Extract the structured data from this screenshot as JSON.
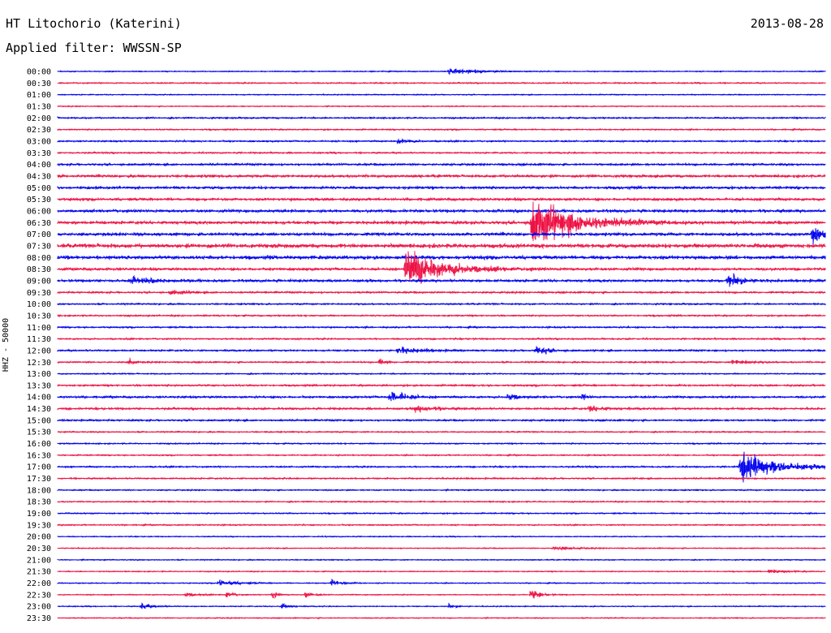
{
  "header": {
    "station": "HT Litochorio (Katerini)",
    "date": "2013-08-28",
    "filter": "Applied filter: WWSSN-SP",
    "channel": "HHZ - 50000"
  },
  "colors": {
    "trace_a": "#0000ee",
    "trace_b": "#ee1144"
  },
  "chart_data": {
    "type": "line",
    "title": "HT Litochorio (Katerini)",
    "subtitle": "Applied filter: WWSSN-SP",
    "ylabel": "HHZ - 50000",
    "xlabel": "",
    "rows": [
      "00:00",
      "00:30",
      "01:00",
      "01:30",
      "02:00",
      "02:30",
      "03:00",
      "03:30",
      "04:00",
      "04:30",
      "05:00",
      "05:30",
      "06:00",
      "06:30",
      "07:00",
      "07:30",
      "08:00",
      "08:30",
      "09:00",
      "09:30",
      "10:00",
      "10:30",
      "11:00",
      "11:30",
      "12:00",
      "12:30",
      "13:00",
      "13:30",
      "14:00",
      "14:30",
      "15:00",
      "15:30",
      "16:00",
      "16:30",
      "17:00",
      "17:30",
      "18:00",
      "18:30",
      "19:00",
      "19:30",
      "20:00",
      "20:30",
      "21:00",
      "21:30",
      "22:00",
      "22:30",
      "23:00",
      "23:30"
    ],
    "row_duration_min": 30,
    "noise_levels": [
      0.2,
      0.25,
      0.2,
      0.2,
      0.3,
      0.25,
      0.3,
      0.3,
      0.4,
      0.5,
      0.5,
      0.5,
      0.55,
      0.6,
      0.6,
      0.8,
      0.7,
      0.5,
      0.5,
      0.35,
      0.3,
      0.3,
      0.3,
      0.3,
      0.35,
      0.3,
      0.25,
      0.35,
      0.4,
      0.4,
      0.35,
      0.25,
      0.25,
      0.25,
      0.3,
      0.3,
      0.25,
      0.25,
      0.25,
      0.25,
      0.2,
      0.2,
      0.2,
      0.2,
      0.2,
      0.2,
      0.2,
      0.2
    ],
    "events": [
      {
        "row": "00:00",
        "minute": 15.3,
        "amplitude": 1.5,
        "duration": 1.5
      },
      {
        "row": "03:00",
        "minute": 13.3,
        "amplitude": 1.2,
        "duration": 0.7
      },
      {
        "row": "06:30",
        "minute": 18.5,
        "amplitude": 12.0,
        "duration": 2.5
      },
      {
        "row": "07:00",
        "minute": 29.5,
        "amplitude": 4.0,
        "duration": 0.6
      },
      {
        "row": "08:30",
        "minute": 13.6,
        "amplitude": 9.0,
        "duration": 2.2
      },
      {
        "row": "09:00",
        "minute": 2.9,
        "amplitude": 1.2,
        "duration": 1.5
      },
      {
        "row": "09:00",
        "minute": 26.2,
        "amplitude": 3.5,
        "duration": 0.8
      },
      {
        "row": "09:30",
        "minute": 4.4,
        "amplitude": 1.0,
        "duration": 1.0
      },
      {
        "row": "12:00",
        "minute": 13.3,
        "amplitude": 1.5,
        "duration": 1.2
      },
      {
        "row": "12:00",
        "minute": 18.7,
        "amplitude": 2.5,
        "duration": 0.6
      },
      {
        "row": "12:30",
        "minute": 2.8,
        "amplitude": 2.0,
        "duration": 0.3
      },
      {
        "row": "12:30",
        "minute": 12.6,
        "amplitude": 2.0,
        "duration": 0.3
      },
      {
        "row": "12:30",
        "minute": 26.4,
        "amplitude": 1.2,
        "duration": 0.8
      },
      {
        "row": "14:00",
        "minute": 13.0,
        "amplitude": 3.0,
        "duration": 0.8
      },
      {
        "row": "14:00",
        "minute": 17.6,
        "amplitude": 2.0,
        "duration": 0.5
      },
      {
        "row": "14:00",
        "minute": 20.5,
        "amplitude": 1.2,
        "duration": 0.3
      },
      {
        "row": "14:30",
        "minute": 14.0,
        "amplitude": 1.5,
        "duration": 1.0
      },
      {
        "row": "14:30",
        "minute": 20.8,
        "amplitude": 1.2,
        "duration": 0.8
      },
      {
        "row": "17:00",
        "minute": 26.7,
        "amplitude": 7.0,
        "duration": 2.0
      },
      {
        "row": "20:30",
        "minute": 19.4,
        "amplitude": 1.0,
        "duration": 1.0
      },
      {
        "row": "21:30",
        "minute": 27.8,
        "amplitude": 1.0,
        "duration": 0.8
      },
      {
        "row": "22:00",
        "minute": 6.3,
        "amplitude": 1.5,
        "duration": 1.0
      },
      {
        "row": "22:00",
        "minute": 10.7,
        "amplitude": 1.5,
        "duration": 0.6
      },
      {
        "row": "22:30",
        "minute": 5.0,
        "amplitude": 1.0,
        "duration": 0.6
      },
      {
        "row": "22:30",
        "minute": 6.6,
        "amplitude": 1.5,
        "duration": 0.4
      },
      {
        "row": "22:30",
        "minute": 8.4,
        "amplitude": 2.0,
        "duration": 0.3
      },
      {
        "row": "22:30",
        "minute": 9.7,
        "amplitude": 1.5,
        "duration": 0.4
      },
      {
        "row": "22:30",
        "minute": 18.5,
        "amplitude": 2.5,
        "duration": 0.5
      },
      {
        "row": "23:00",
        "minute": 3.3,
        "amplitude": 1.5,
        "duration": 0.6
      },
      {
        "row": "23:00",
        "minute": 8.8,
        "amplitude": 1.2,
        "duration": 0.4
      },
      {
        "row": "23:00",
        "minute": 15.3,
        "amplitude": 1.0,
        "duration": 0.4
      }
    ]
  }
}
